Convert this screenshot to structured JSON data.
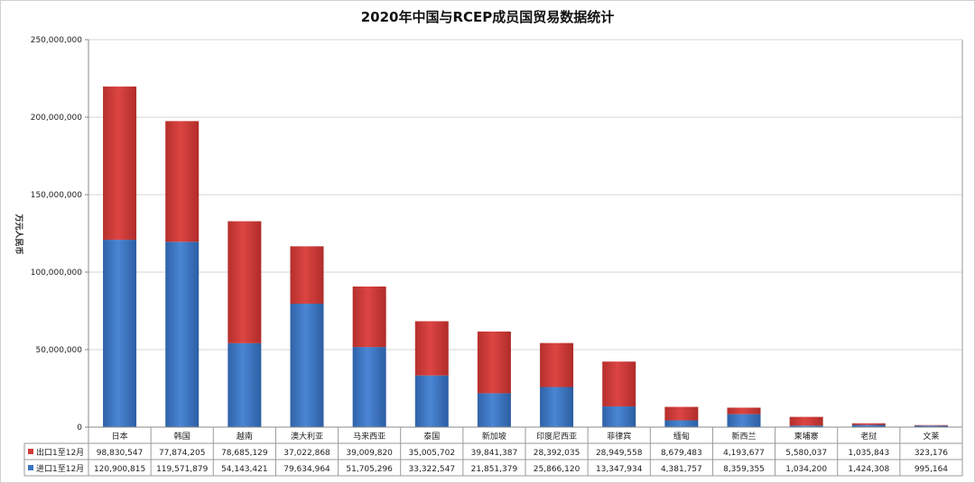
{
  "chart_data": {
    "type": "bar",
    "stacked": true,
    "title": "2020年中国与RCEP成员国贸易数据统计",
    "ylabel": "万元人民币",
    "xlabel": "",
    "ylim": [
      0,
      250000000
    ],
    "yticks": [
      0,
      50000000,
      100000000,
      150000000,
      200000000,
      250000000
    ],
    "ytick_labels": [
      "0",
      "50,000,000",
      "100,000,000",
      "150,000,000",
      "200,000,000",
      "250,000,000"
    ],
    "grid": true,
    "legend": "data-table",
    "categories": [
      "日本",
      "韩国",
      "越南",
      "澳大利亚",
      "马来西亚",
      "泰国",
      "新加坡",
      "印度尼西亚",
      "菲律宾",
      "缅甸",
      "新西兰",
      "柬埔寨",
      "老挝",
      "文莱"
    ],
    "series": [
      {
        "name": "进口1至12月",
        "color": "#3a75c4",
        "values": [
          120900815,
          119571879,
          54143421,
          79634964,
          51705296,
          33322547,
          21851379,
          25866120,
          13347934,
          4381757,
          8359355,
          1034200,
          1424308,
          995164
        ],
        "value_labels": [
          "120,900,815",
          "119,571,879",
          "54,143,421",
          "79,634,964",
          "51,705,296",
          "33,322,547",
          "21,851,379",
          "25,866,120",
          "13,347,934",
          "4,381,757",
          "8,359,355",
          "1,034,200",
          "1,424,308",
          "995,164"
        ]
      },
      {
        "name": "出口1至12月",
        "color": "#d13b38",
        "values": [
          98830547,
          77874205,
          78685129,
          37022868,
          39009820,
          35005702,
          39841387,
          28392035,
          28949558,
          8679483,
          4193677,
          5580037,
          1035843,
          323176
        ],
        "value_labels": [
          "98,830,547",
          "77,874,205",
          "78,685,129",
          "37,022,868",
          "39,009,820",
          "35,005,702",
          "39,841,387",
          "28,392,035",
          "28,949,558",
          "8,679,483",
          "4,193,677",
          "5,580,037",
          "1,035,843",
          "323,176"
        ]
      }
    ]
  }
}
